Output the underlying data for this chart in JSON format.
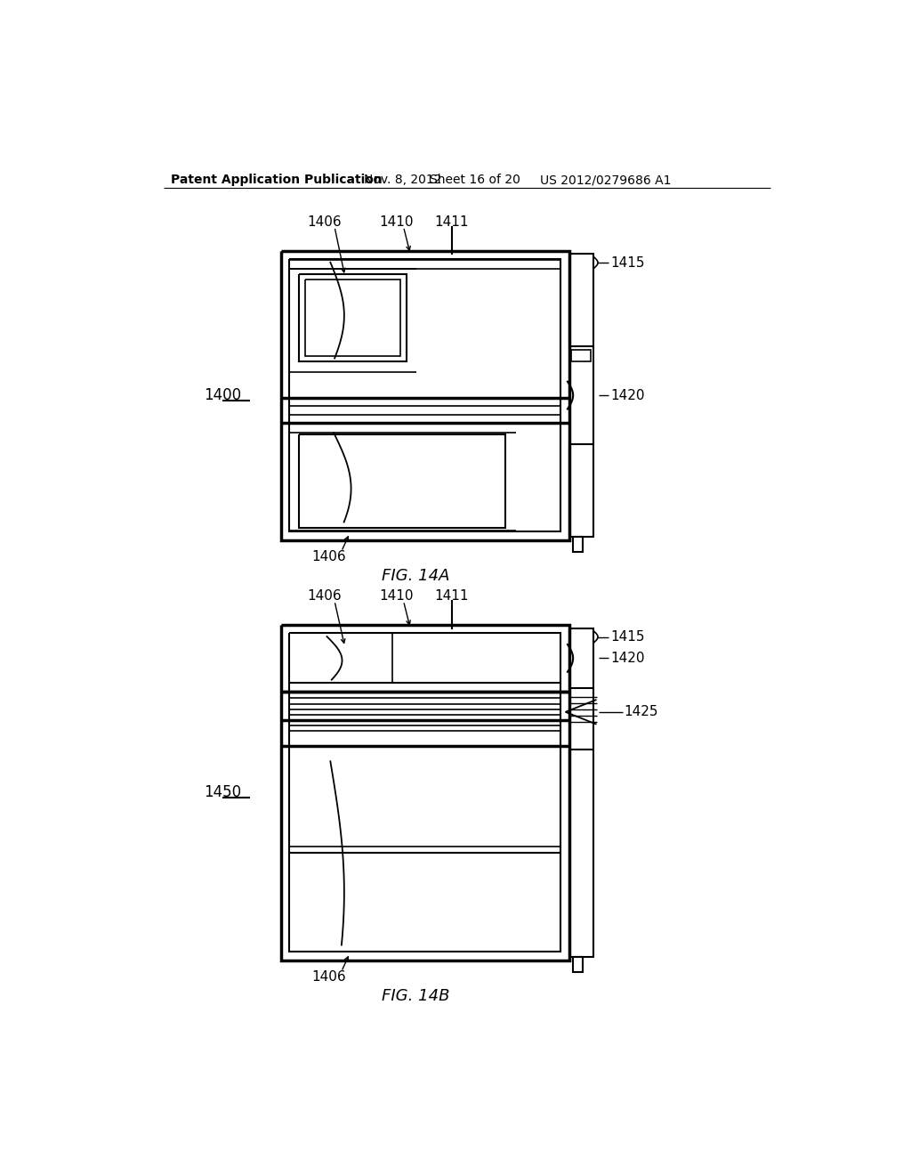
{
  "bg_color": "#ffffff",
  "line_color": "#000000",
  "header_text": "Patent Application Publication",
  "header_date": "Nov. 8, 2012",
  "header_sheet": "Sheet 16 of 20",
  "header_patent": "US 2012/0279686 A1",
  "fig_label_A": "FIG. 14A",
  "fig_label_B": "FIG. 14B",
  "lbl_1400": "1400",
  "lbl_1450": "1450",
  "lbl_1406": "1406",
  "lbl_1410": "1410",
  "lbl_1411": "1411",
  "lbl_1415": "1415",
  "lbl_1420": "1420",
  "lbl_1425": "1425"
}
